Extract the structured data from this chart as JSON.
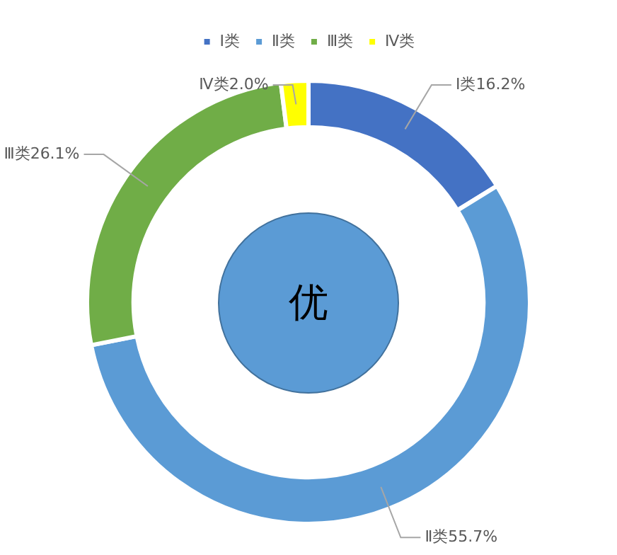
{
  "chart_data": {
    "type": "donut",
    "categories": [
      "Ⅰ类",
      "Ⅱ类",
      "Ⅲ类",
      "Ⅳ类"
    ],
    "values": [
      16.2,
      55.7,
      26.1,
      2.0
    ],
    "colors": [
      "#4472c4",
      "#5b9bd5",
      "#70ad47",
      "#ffff00"
    ],
    "value_labels": [
      "Ⅰ类16.2%",
      "Ⅱ类55.7%",
      "Ⅲ类26.1%",
      "Ⅳ类2.0%"
    ],
    "legend": "top",
    "annotations": [
      "优"
    ]
  }
}
